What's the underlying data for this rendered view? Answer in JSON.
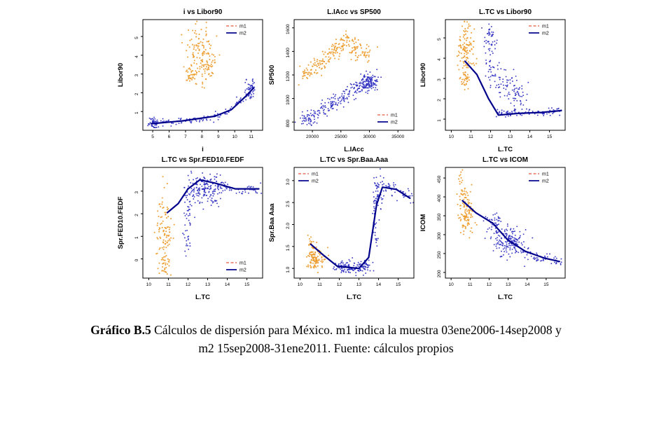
{
  "caption": {
    "label": "Gráfico B.5",
    "line1": " Cálculos de dispersión para México. m1 indica la muestra 03ene2006-14sep2008 y",
    "line2": "m2 15sep2008-31ene2011. Fuente: cálculos propios"
  },
  "legend": {
    "m1": "m1",
    "m2": "m2"
  },
  "colors": {
    "m1_point": "#EC9A28",
    "m1_legend": "#E87460",
    "m2_point": "#2B2BC0",
    "m2_line": "#00008B",
    "axis": "#000000"
  },
  "chart_data": [
    {
      "type": "scatter",
      "title": "i vs Libor90",
      "xlabel": "i",
      "ylabel": "Libor90",
      "xlim": [
        4.4,
        11.7
      ],
      "ylim": [
        0,
        5.9
      ],
      "xticks": [
        5,
        6,
        7,
        8,
        9,
        10,
        11
      ],
      "xtick_labels": [
        "5",
        "6",
        "7",
        "8",
        "9",
        "10",
        "11"
      ],
      "yticks": [
        1,
        2,
        3,
        4,
        5
      ],
      "ytick_labels": [
        "1",
        "2",
        "3",
        "4",
        "5"
      ],
      "legend_pos": "top-right",
      "series": [
        {
          "name": "m1",
          "clusters": [
            {
              "cx": 7.9,
              "cy": 4.2,
              "sx": 0.45,
              "sy": 0.75,
              "n": 120
            },
            {
              "cx": 7.4,
              "cy": 2.95,
              "sx": 0.3,
              "sy": 0.25,
              "n": 35
            },
            {
              "cx": 8.5,
              "cy": 3.4,
              "sx": 0.2,
              "sy": 0.4,
              "n": 25
            }
          ],
          "paths": [],
          "trend": []
        },
        {
          "name": "m2",
          "clusters": [
            {
              "cx": 11.0,
              "cy": 2.25,
              "sx": 0.15,
              "sy": 0.3,
              "n": 45
            },
            {
              "cx": 5.05,
              "cy": 0.4,
              "sx": 0.15,
              "sy": 0.15,
              "n": 40
            }
          ],
          "paths": [
            {
              "pts": [
                [
                  4.9,
                  0.35
                ],
                [
                  6.6,
                  0.45
                ],
                [
                  8.2,
                  0.6
                ],
                [
                  9.2,
                  0.85
                ],
                [
                  10.1,
                  1.3
                ],
                [
                  10.9,
                  2.1
                ]
              ],
              "n": 110,
              "jx": 0.12,
              "jy": 0.1
            }
          ],
          "trend": [
            [
              4.9,
              0.35
            ],
            [
              6.8,
              0.5
            ],
            [
              8.8,
              0.75
            ],
            [
              9.8,
              1.1
            ],
            [
              10.6,
              1.75
            ],
            [
              11.15,
              2.25
            ]
          ]
        }
      ]
    },
    {
      "type": "scatter",
      "title": "L.IAcc vs SP500",
      "xlabel": "L.IAcc",
      "ylabel": "SP500",
      "xlim": [
        16800,
        37800
      ],
      "ylim": [
        730,
        1670
      ],
      "xticks": [
        20000,
        25000,
        30000,
        35000
      ],
      "xtick_labels": [
        "20000",
        "25000",
        "30000",
        "35000"
      ],
      "yticks": [
        800,
        1000,
        1200,
        1400,
        1600
      ],
      "ytick_labels": [
        "800",
        "1000",
        "1200",
        "1400",
        "1600"
      ],
      "legend_pos": "bottom-right",
      "series": [
        {
          "name": "m1",
          "clusters": [
            {
              "cx": 27800,
              "cy": 1420,
              "sx": 900,
              "sy": 45,
              "n": 45
            },
            {
              "cx": 29500,
              "cy": 1390,
              "sx": 600,
              "sy": 35,
              "n": 18
            }
          ],
          "paths": [
            {
              "pts": [
                [
                  18000,
                  1185
                ],
                [
                  20500,
                  1270
                ],
                [
                  23000,
                  1370
                ],
                [
                  25200,
                  1480
                ],
                [
                  26200,
                  1520
                ]
              ],
              "n": 150,
              "jx": 500,
              "jy": 35
            }
          ],
          "trend": []
        },
        {
          "name": "m2",
          "clusters": [
            {
              "cx": 29800,
              "cy": 1135,
              "sx": 1000,
              "sy": 40,
              "n": 90
            }
          ],
          "paths": [
            {
              "pts": [
                [
                  18400,
                  795
                ],
                [
                  21000,
                  880
                ],
                [
                  23500,
                  955
                ],
                [
                  25500,
                  1010
                ],
                [
                  27500,
                  1075
                ],
                [
                  29500,
                  1140
                ],
                [
                  31200,
                  1190
                ]
              ],
              "n": 230,
              "jx": 600,
              "jy": 30
            }
          ],
          "trend": []
        }
      ]
    },
    {
      "type": "scatter",
      "title": "L.TC vs Libor90",
      "xlabel": "L.TC",
      "ylabel": "Libor90",
      "xlim": [
        9.7,
        15.8
      ],
      "ylim": [
        0.45,
        5.9
      ],
      "xticks": [
        10,
        11,
        12,
        13,
        14,
        15
      ],
      "xtick_labels": [
        "10",
        "11",
        "12",
        "13",
        "14",
        "15"
      ],
      "yticks": [
        1,
        2,
        3,
        4,
        5
      ],
      "ytick_labels": [
        "1",
        "2",
        "3",
        "4",
        "5"
      ],
      "legend_pos": "top-right",
      "series": [
        {
          "name": "m1",
          "clusters": [
            {
              "cx": 10.75,
              "cy": 4.35,
              "sx": 0.2,
              "sy": 0.7,
              "n": 110
            },
            {
              "cx": 10.65,
              "cy": 2.95,
              "sx": 0.12,
              "sy": 0.3,
              "n": 30
            }
          ],
          "paths": [],
          "trend": []
        },
        {
          "name": "m2",
          "clusters": [
            {
              "cx": 12.0,
              "cy": 4.95,
              "sx": 0.13,
              "sy": 0.4,
              "n": 45
            },
            {
              "cx": 12.15,
              "cy": 3.4,
              "sx": 0.2,
              "sy": 0.45,
              "n": 35
            },
            {
              "cx": 12.9,
              "cy": 2.7,
              "sx": 0.35,
              "sy": 0.45,
              "n": 55
            },
            {
              "cx": 13.4,
              "cy": 2.1,
              "sx": 0.3,
              "sy": 0.3,
              "n": 25
            }
          ],
          "paths": [
            {
              "pts": [
                [
                  12.3,
                  1.3
                ],
                [
                  13.6,
                  1.3
                ],
                [
                  14.8,
                  1.35
                ],
                [
                  15.6,
                  1.45
                ]
              ],
              "n": 90,
              "jx": 0.12,
              "jy": 0.1
            }
          ],
          "trend": [
            [
              10.7,
              3.85
            ],
            [
              11.3,
              3.2
            ],
            [
              11.9,
              2.0
            ],
            [
              12.4,
              1.2
            ],
            [
              13.4,
              1.28
            ],
            [
              14.6,
              1.33
            ],
            [
              15.6,
              1.42
            ]
          ]
        }
      ]
    },
    {
      "type": "scatter",
      "title": "L.TC vs Spr.FED10.FEDF",
      "xlabel": "L.TC",
      "ylabel": "Spr.FED10.FEDF",
      "xlim": [
        9.7,
        15.8
      ],
      "ylim": [
        -0.85,
        4.05
      ],
      "xticks": [
        10,
        11,
        12,
        13,
        14,
        15
      ],
      "xtick_labels": [
        "10",
        "11",
        "12",
        "13",
        "14",
        "15"
      ],
      "yticks": [
        0,
        1,
        2,
        3
      ],
      "ytick_labels": [
        "0",
        "1",
        "2",
        "3"
      ],
      "legend_pos": "bottom-right",
      "series": [
        {
          "name": "m1",
          "clusters": [
            {
              "cx": 10.8,
              "cy": 1.5,
              "sx": 0.2,
              "sy": 0.8,
              "n": 90
            },
            {
              "cx": 10.85,
              "cy": -0.25,
              "sx": 0.13,
              "sy": 0.3,
              "n": 30
            }
          ],
          "paths": [],
          "trend": []
        },
        {
          "name": "m2",
          "clusters": [
            {
              "cx": 12.9,
              "cy": 3.1,
              "sx": 0.45,
              "sy": 0.35,
              "n": 170
            },
            {
              "cx": 12.05,
              "cy": 2.2,
              "sx": 0.12,
              "sy": 0.7,
              "n": 35
            },
            {
              "cx": 12.0,
              "cy": 0.9,
              "sx": 0.1,
              "sy": 0.35,
              "n": 18
            }
          ],
          "paths": [
            {
              "pts": [
                [
                  13.6,
                  3.25
                ],
                [
                  14.6,
                  3.05
                ],
                [
                  15.6,
                  3.1
                ]
              ],
              "n": 45,
              "jx": 0.15,
              "jy": 0.12
            }
          ],
          "trend": [
            [
              10.95,
              2.05
            ],
            [
              11.5,
              2.45
            ],
            [
              12.0,
              3.1
            ],
            [
              12.6,
              3.5
            ],
            [
              13.4,
              3.35
            ],
            [
              14.4,
              3.1
            ],
            [
              15.6,
              3.1
            ]
          ]
        }
      ]
    },
    {
      "type": "scatter",
      "title": "L.TC vs Spr.Baa.Aaa",
      "xlabel": "L.TC",
      "ylabel": "Spr.Baa Aaa",
      "xlim": [
        9.7,
        15.8
      ],
      "ylim": [
        0.78,
        3.3
      ],
      "xticks": [
        10,
        11,
        12,
        13,
        14,
        15
      ],
      "xtick_labels": [
        "10",
        "11",
        "12",
        "13",
        "14",
        "15"
      ],
      "yticks": [
        1.0,
        1.5,
        2.0,
        2.5,
        3.0
      ],
      "ytick_labels": [
        "1.0",
        "1.5",
        "2.0",
        "2.5",
        "3.0"
      ],
      "legend_pos": "top-left",
      "series": [
        {
          "name": "m1",
          "clusters": [
            {
              "cx": 10.8,
              "cy": 1.22,
              "sx": 0.22,
              "sy": 0.13,
              "n": 110
            },
            {
              "cx": 10.55,
              "cy": 1.55,
              "sx": 0.08,
              "sy": 0.08,
              "n": 12
            }
          ],
          "paths": [],
          "trend": []
        },
        {
          "name": "m2",
          "clusters": [
            {
              "cx": 13.95,
              "cy": 2.7,
              "sx": 0.15,
              "sy": 0.25,
              "n": 55
            },
            {
              "cx": 13.85,
              "cy": 1.95,
              "sx": 0.09,
              "sy": 0.35,
              "n": 25
            }
          ],
          "paths": [
            {
              "pts": [
                [
                  11.9,
                  1.05
                ],
                [
                  12.9,
                  1.0
                ],
                [
                  13.5,
                  1.07
                ]
              ],
              "n": 140,
              "jx": 0.2,
              "jy": 0.07
            },
            {
              "pts": [
                [
                  14.3,
                  2.9
                ],
                [
                  15.1,
                  2.78
                ],
                [
                  15.6,
                  2.62
                ]
              ],
              "n": 40,
              "jx": 0.12,
              "jy": 0.09
            }
          ],
          "trend": [
            [
              10.55,
              1.55
            ],
            [
              11.2,
              1.3
            ],
            [
              11.9,
              1.05
            ],
            [
              13.0,
              1.0
            ],
            [
              13.5,
              1.25
            ],
            [
              13.9,
              2.45
            ],
            [
              14.2,
              2.85
            ],
            [
              14.9,
              2.8
            ],
            [
              15.6,
              2.6
            ]
          ]
        }
      ]
    },
    {
      "type": "scatter",
      "title": "L.TC vs ICOM",
      "xlabel": "L.TC",
      "ylabel": "ICOM",
      "xlim": [
        9.7,
        16.0
      ],
      "ylim": [
        185,
        478
      ],
      "xticks": [
        10,
        11,
        12,
        13,
        14,
        15
      ],
      "xtick_labels": [
        "10",
        "11",
        "12",
        "13",
        "14",
        "15"
      ],
      "yticks": [
        200,
        250,
        300,
        350,
        400,
        450
      ],
      "ytick_labels": [
        "200",
        "250",
        "300",
        "350",
        "400",
        "450"
      ],
      "legend_pos": "top-right",
      "series": [
        {
          "name": "m1",
          "clusters": [
            {
              "cx": 10.8,
              "cy": 355,
              "sx": 0.2,
              "sy": 30,
              "n": 100
            },
            {
              "cx": 10.55,
              "cy": 452,
              "sx": 0.08,
              "sy": 10,
              "n": 10
            },
            {
              "cx": 10.6,
              "cy": 412,
              "sx": 0.1,
              "sy": 10,
              "n": 14
            }
          ],
          "paths": [],
          "trend": []
        },
        {
          "name": "m2",
          "clusters": [
            {
              "cx": 12.25,
              "cy": 328,
              "sx": 0.22,
              "sy": 14,
              "n": 45
            },
            {
              "cx": 13.0,
              "cy": 281,
              "sx": 0.38,
              "sy": 18,
              "n": 170
            }
          ],
          "paths": [
            {
              "pts": [
                [
                  13.7,
                  258
                ],
                [
                  14.6,
                  240
                ],
                [
                  15.7,
                  228
                ]
              ],
              "n": 60,
              "jx": 0.18,
              "jy": 7
            }
          ],
          "trend": [
            [
              10.6,
              390
            ],
            [
              11.3,
              358
            ],
            [
              12.2,
              330
            ],
            [
              13.0,
              285
            ],
            [
              13.9,
              256
            ],
            [
              14.9,
              238
            ],
            [
              15.7,
              229
            ]
          ]
        }
      ]
    }
  ]
}
